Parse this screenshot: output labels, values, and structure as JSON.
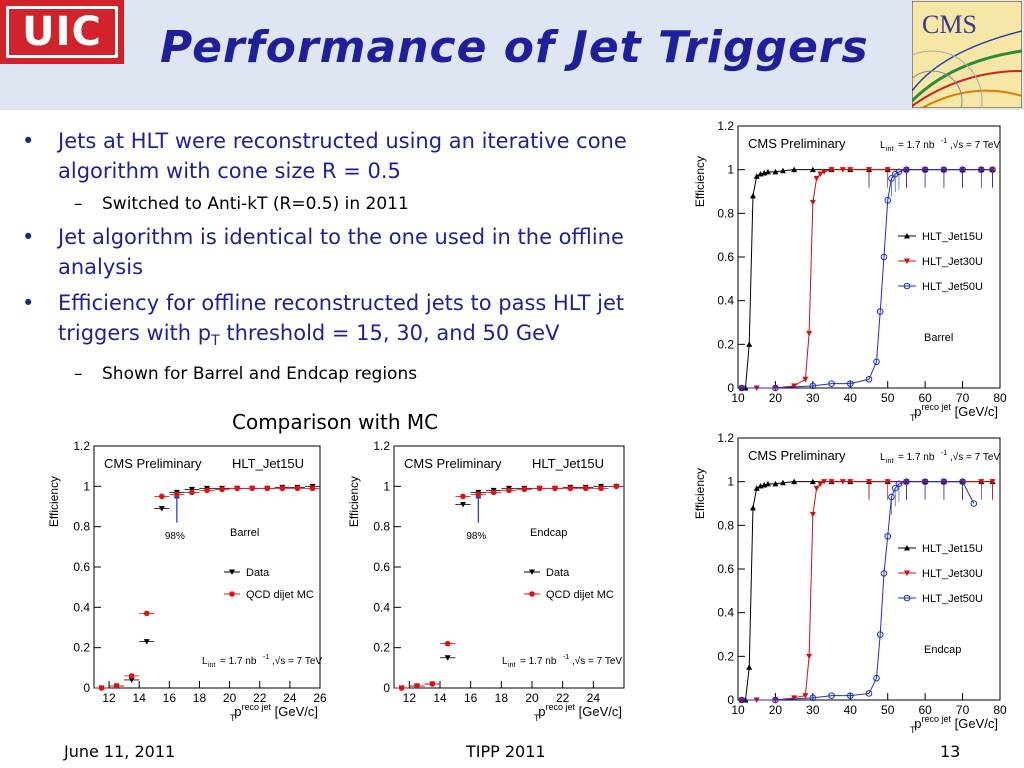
{
  "header": {
    "title": "Performance of Jet Triggers",
    "uic_logo": "UIC",
    "cms_logo": "CMS"
  },
  "bullets": [
    {
      "text": "Jets at HLT were reconstructed using an iterative cone algorithm with cone size R = 0.5",
      "sub": [
        "Switched to Anti-kT (R=0.5) in 2011"
      ]
    },
    {
      "text": "Jet algorithm is identical to the one used in the offline analysis",
      "sub": []
    },
    {
      "text_pre": "Efficiency for offline reconstructed jets to pass HLT jet triggers with p",
      "text_sub": "T",
      "text_post": " threshold = 15, 30, and 50 GeV",
      "sub": [
        "Shown for Barrel and Endcap regions"
      ]
    }
  ],
  "caption": "Comparison with MC",
  "footer": {
    "date": "June 11, 2011",
    "conference": "TIPP 2011",
    "page": "13"
  },
  "chart_data": [
    {
      "id": "barrel-eff",
      "type": "scatter",
      "title": "CMS Preliminary",
      "lumi": "1.7",
      "sqrts": "7 TeV",
      "region": "Barrel",
      "xlim": [
        10,
        80
      ],
      "ylim": [
        0,
        1.2
      ],
      "xticks": [
        "10",
        "20",
        "30",
        "40",
        "50",
        "60",
        "70",
        "80"
      ],
      "yticks": [
        "0",
        "0.2",
        "0.4",
        "0.6",
        "0.8",
        "1",
        "1.2"
      ],
      "ylabel": "Efficiency",
      "xlabel_unit": "[GeV/c]",
      "legend": [
        "HLT_Jet15U",
        "HLT_Jet30U",
        "HLT_Jet50U"
      ],
      "series": [
        {
          "name": "HLT_Jet15U",
          "color": "#000000",
          "marker": "triangle",
          "x": [
            11,
            12,
            13,
            14,
            15,
            16,
            17,
            18,
            20,
            22,
            25,
            30,
            35,
            40,
            45,
            50,
            55,
            60,
            65,
            70,
            75,
            78
          ],
          "y": [
            0,
            0,
            0.2,
            0.88,
            0.97,
            0.98,
            0.985,
            0.99,
            0.99,
            0.995,
            1,
            1,
            1,
            1,
            1,
            1,
            1,
            1,
            1,
            1,
            1,
            1
          ]
        },
        {
          "name": "HLT_Jet30U",
          "color": "#d01010",
          "marker": "triangle-down",
          "x": [
            11,
            15,
            20,
            25,
            28,
            29,
            30,
            31,
            32,
            33,
            35,
            38,
            40,
            45,
            50,
            55,
            60,
            65,
            70,
            75,
            78
          ],
          "y": [
            0,
            0,
            0,
            0.01,
            0.04,
            0.25,
            0.85,
            0.96,
            0.98,
            0.99,
            1,
            1,
            1,
            1,
            1,
            1,
            1,
            1,
            1,
            1,
            1
          ]
        },
        {
          "name": "HLT_Jet50U",
          "color": "#1a2fd0",
          "marker": "circle",
          "x": [
            11,
            20,
            30,
            35,
            40,
            45,
            47,
            48,
            49,
            50,
            51,
            52,
            53,
            55,
            60,
            65,
            70,
            75,
            78
          ],
          "y": [
            0,
            0,
            0.01,
            0.02,
            0.02,
            0.04,
            0.12,
            0.35,
            0.6,
            0.86,
            0.96,
            0.98,
            0.99,
            1,
            1,
            1,
            1,
            1,
            1
          ]
        }
      ]
    },
    {
      "id": "endcap-eff",
      "type": "scatter",
      "title": "CMS Preliminary",
      "lumi": "1.7",
      "sqrts": "7 TeV",
      "region": "Endcap",
      "xlim": [
        10,
        80
      ],
      "ylim": [
        0,
        1.2
      ],
      "xticks": [
        "10",
        "20",
        "30",
        "40",
        "50",
        "60",
        "70",
        "80"
      ],
      "yticks": [
        "0",
        "0.2",
        "0.4",
        "0.6",
        "0.8",
        "1",
        "1.2"
      ],
      "ylabel": "Efficiency",
      "xlabel_unit": "[GeV/c]",
      "legend": [
        "HLT_Jet15U",
        "HLT_Jet30U",
        "HLT_Jet50U"
      ],
      "series": [
        {
          "name": "HLT_Jet15U",
          "color": "#000000",
          "marker": "triangle",
          "x": [
            11,
            12,
            13,
            14,
            15,
            16,
            17,
            18,
            20,
            22,
            25,
            30,
            35,
            40,
            45,
            50,
            55,
            60,
            65,
            70,
            75,
            78
          ],
          "y": [
            0,
            0,
            0.15,
            0.88,
            0.97,
            0.98,
            0.985,
            0.99,
            0.99,
            0.995,
            1,
            1,
            1,
            1,
            1,
            1,
            1,
            1,
            1,
            1,
            1,
            1
          ]
        },
        {
          "name": "HLT_Jet30U",
          "color": "#d01010",
          "marker": "triangle-down",
          "x": [
            11,
            15,
            20,
            25,
            28,
            29,
            30,
            31,
            32,
            33,
            35,
            38,
            40,
            45,
            50,
            55,
            60,
            65,
            70,
            75,
            78
          ],
          "y": [
            0,
            0,
            0,
            0.01,
            0.02,
            0.2,
            0.85,
            0.97,
            0.99,
            1,
            1,
            1,
            1,
            1,
            1,
            1,
            1,
            1,
            1,
            1,
            1
          ]
        },
        {
          "name": "HLT_Jet50U",
          "color": "#1a2fd0",
          "marker": "circle",
          "x": [
            11,
            20,
            30,
            35,
            40,
            45,
            47,
            48,
            49,
            50,
            51,
            52,
            53,
            55,
            60,
            65,
            70,
            73
          ],
          "y": [
            0,
            0,
            0.01,
            0.02,
            0.02,
            0.03,
            0.1,
            0.3,
            0.58,
            0.75,
            0.93,
            0.97,
            0.99,
            1,
            1,
            1,
            1,
            0.9
          ]
        }
      ]
    },
    {
      "id": "mc-barrel",
      "type": "scatter",
      "title": "CMS Preliminary",
      "trigger": "HLT_Jet15U",
      "region": "Barrel",
      "lumi": "1.7",
      "sqrts": "7 TeV",
      "annotation": "98%",
      "xlim": [
        11,
        26
      ],
      "ylim": [
        0,
        1.2
      ],
      "xticks": [
        "12",
        "14",
        "16",
        "18",
        "20",
        "22",
        "24",
        "26"
      ],
      "yticks": [
        "0",
        "0.2",
        "0.4",
        "0.6",
        "0.8",
        "1",
        "1.2"
      ],
      "ylabel": "Efficiency",
      "xlabel_unit": "[GeV/c]",
      "legend": [
        "Data",
        "QCD dijet MC"
      ],
      "series": [
        {
          "name": "Data",
          "color": "#000000",
          "marker": "triangle-down",
          "x": [
            11.5,
            12.5,
            13.5,
            14.5,
            15.5,
            16.5,
            17.5,
            18.5,
            19.5,
            20.5,
            21.5,
            22.5,
            23.5,
            24.5,
            25.5
          ],
          "y": [
            0,
            0.01,
            0.04,
            0.23,
            0.89,
            0.97,
            0.985,
            0.99,
            0.99,
            0.99,
            0.99,
            0.99,
            0.995,
            0.995,
            1
          ]
        },
        {
          "name": "QCD dijet MC",
          "color": "#e01010",
          "marker": "circle",
          "x": [
            11.5,
            12.5,
            13.5,
            14.5,
            15.5,
            16.5,
            17.5,
            18.5,
            19.5,
            20.5,
            21.5,
            22.5,
            23.5,
            24.5,
            25.5
          ],
          "y": [
            0,
            0.01,
            0.06,
            0.37,
            0.95,
            0.96,
            0.97,
            0.98,
            0.985,
            0.99,
            0.99,
            0.99,
            0.99,
            0.99,
            0.99
          ]
        }
      ]
    },
    {
      "id": "mc-endcap",
      "type": "scatter",
      "title": "CMS Preliminary",
      "trigger": "HLT_Jet15U",
      "region": "Endcap",
      "lumi": "1.7",
      "sqrts": "7 TeV",
      "annotation": "98%",
      "xlim": [
        11,
        26
      ],
      "ylim": [
        0,
        1.2
      ],
      "xticks": [
        "12",
        "14",
        "16",
        "18",
        "20",
        "22",
        "24"
      ],
      "yticks": [
        "0",
        "0.2",
        "0.4",
        "0.6",
        "0.8",
        "1",
        "1.2"
      ],
      "ylabel": "Efficiency",
      "xlabel_unit": "[GeV/c]",
      "legend": [
        "Data",
        "QCD dijet MC"
      ],
      "series": [
        {
          "name": "Data",
          "color": "#000000",
          "marker": "triangle-down",
          "x": [
            11.5,
            12.5,
            13.5,
            14.5,
            15.5,
            16.5,
            17.5,
            18.5,
            19.5,
            20.5,
            21.5,
            22.5,
            23.5,
            24.5,
            25.5
          ],
          "y": [
            0,
            0.01,
            0.02,
            0.15,
            0.91,
            0.97,
            0.98,
            0.99,
            0.99,
            0.99,
            0.99,
            0.995,
            0.995,
            1,
            1
          ]
        },
        {
          "name": "QCD dijet MC",
          "color": "#e01010",
          "marker": "circle",
          "x": [
            11.5,
            12.5,
            13.5,
            14.5,
            15.5,
            16.5,
            17.5,
            18.5,
            19.5,
            20.5,
            21.5,
            22.5,
            23.5,
            24.5,
            25.5
          ],
          "y": [
            0,
            0.01,
            0.02,
            0.22,
            0.95,
            0.96,
            0.97,
            0.98,
            0.985,
            0.99,
            0.99,
            0.99,
            0.99,
            0.99,
            1
          ]
        }
      ]
    }
  ]
}
